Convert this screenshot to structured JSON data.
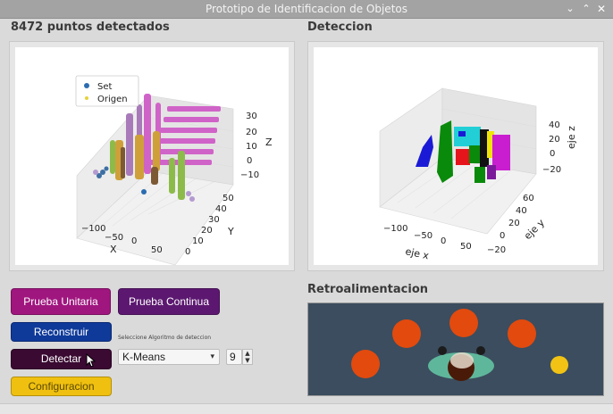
{
  "window": {
    "title": "Prototipo de Identificacion de  Objetos",
    "controls": [
      "chevron-down",
      "chevron-up",
      "close"
    ]
  },
  "left": {
    "title": "8472 puntos detectados"
  },
  "right": {
    "title": "Deteccion"
  },
  "feedback": {
    "title": "Retroalimentacion"
  },
  "buttons": {
    "prueba_unitaria": "Prueba Unitaria",
    "prueba_continua": "Prueba Continua",
    "reconstruir": "Reconstruir",
    "detectar": "Detectar",
    "configuracion": "Configuracion"
  },
  "algorithm": {
    "label": "Seleccione Algoritmo de deteccion",
    "selected": "K-Means",
    "clusters": "9"
  },
  "colors": {
    "prueba_unitaria": "#a0167f",
    "prueba_continua": "#5c1870",
    "reconstruir": "#0f3a9a",
    "detectar": "#3a0a32",
    "configuracion": "#f0c010",
    "feedback_bg": "#3b4d5e",
    "orange_marker": "#e24a0e",
    "yellow_marker": "#f2c314"
  },
  "chart_data": [
    {
      "type": "scatter",
      "title": "",
      "legend": {
        "placement": "top-left",
        "entries": [
          "Set",
          "Origen"
        ]
      },
      "x_axis": {
        "label": "X",
        "ticks": [
          "−100",
          "−50",
          "0",
          "50"
        ]
      },
      "y_axis": {
        "label": "Y",
        "ticks": [
          "0",
          "10",
          "20",
          "30",
          "40",
          "50"
        ]
      },
      "z_axis": {
        "label": "Z",
        "ticks": [
          "−10",
          "0",
          "10",
          "20",
          "30"
        ]
      },
      "grid": true
    },
    {
      "type": "scatter",
      "title": "",
      "x_axis": {
        "label": "eje x",
        "ticks": [
          "−100",
          "−50",
          "0",
          "50"
        ]
      },
      "y_axis": {
        "label": "eje y",
        "ticks": [
          "−20",
          "0",
          "20",
          "40",
          "60"
        ]
      },
      "z_axis": {
        "label": "eje z",
        "ticks": [
          "−20",
          "0",
          "20",
          "40"
        ]
      },
      "clusters": [
        "blue",
        "green",
        "cyan",
        "black",
        "red",
        "yellow",
        "magenta",
        "purple"
      ],
      "grid": true
    }
  ]
}
